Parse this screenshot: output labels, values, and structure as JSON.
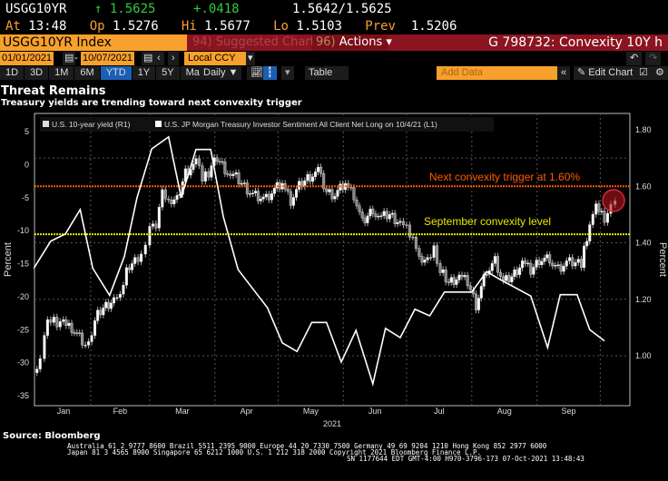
{
  "quote": {
    "ticker": "USGG10YR",
    "last": "1.5625",
    "arrow": "↑",
    "change": "+.0418",
    "bid_ask": "1.5642/1.5625",
    "at_label": "At",
    "time": "13:48",
    "op_label": "Op",
    "open": "1.5276",
    "hi_label": "Hi",
    "high": "1.5677",
    "lo_label": "Lo",
    "low": "1.5103",
    "prev_label": "Prev",
    "prev": "1.5206"
  },
  "command": {
    "security": "USGG10YR Index",
    "suggested_num": "94)",
    "suggested": "Suggested Charts",
    "actions_num": "96)",
    "actions": "Actions ▾",
    "chart_title": "G 798732: Convexity 10Y h"
  },
  "dates": {
    "start": "01/01/2021",
    "sep": "-",
    "end": "10/07/2021",
    "currency": "Local CCY"
  },
  "toolbar": {
    "periods": [
      "1D",
      "3D",
      "1M",
      "6M",
      "YTD",
      "1Y",
      "5Y",
      "Max"
    ],
    "active": "YTD",
    "frequency": "Daily ▼",
    "table": "Table",
    "add_data_placeholder": "Add Data",
    "edit_chart": "Edit Chart"
  },
  "chart_data": {
    "type": "line",
    "title": "Threat Remains",
    "subtitle": "Treasury yields are trending toward next convexity trigger",
    "legend": [
      "U.S. 10-year yield (R1)",
      "U.S. JP Morgan Treasury Investor Sentiment All Client Net Long  on 10/4/21 (L1)"
    ],
    "left_axis": {
      "label": "Percent",
      "ticks": [
        5,
        0,
        -5,
        -10,
        -15,
        -20,
        -25,
        -30,
        -35
      ],
      "range": [
        -36,
        6
      ]
    },
    "right_axis": {
      "label": "Percent",
      "ticks": [
        "1.80",
        "1.60",
        "1.40",
        "1.20",
        "1.00"
      ],
      "range": [
        0.86,
        1.86
      ]
    },
    "x_axis": {
      "months": [
        "Jan",
        "Feb",
        "Mar",
        "Apr",
        "May",
        "Jun",
        "Jul",
        "Aug",
        "Sep"
      ],
      "year": "2021",
      "unit": "day-of-year"
    },
    "annotations": [
      {
        "text": "Next convexity trigger at 1.60%",
        "value": 1.6,
        "color": "#ff5a00"
      },
      {
        "text": "September convexity level",
        "value": 1.43,
        "color": "#e8e800"
      }
    ],
    "sentiment": {
      "x": [
        4,
        12,
        19,
        26,
        32,
        40,
        47,
        53,
        60,
        68,
        74,
        81,
        88,
        94,
        101,
        115,
        122,
        129,
        136,
        143,
        150,
        157,
        165,
        171,
        178,
        185,
        192,
        199,
        207,
        212,
        219,
        226,
        240,
        248,
        254,
        262,
        268,
        275
      ],
      "y": [
        -15.7,
        -11.6,
        -10.5,
        -6.8,
        -15.7,
        -19.8,
        -13.9,
        -5.0,
        2.4,
        4.2,
        -5.0,
        2.3,
        2.3,
        -7.9,
        -15.9,
        -21.7,
        -27.0,
        -28.3,
        -23.9,
        -23.9,
        -29.9,
        -25.1,
        -33.2,
        -24.8,
        -26.2,
        -21.9,
        -22.9,
        -19.3,
        -19.3,
        -19.3,
        -16.2,
        -17.5,
        -19.9,
        -27.7,
        -19.7,
        -19.7,
        -25.0,
        -26.7
      ]
    },
    "yield": {
      "x": [
        4,
        7,
        9,
        12,
        15,
        18,
        22,
        27,
        30,
        33,
        37,
        42,
        45,
        48,
        52,
        55,
        57,
        59,
        62,
        65,
        68,
        72,
        76,
        81,
        84,
        87,
        91,
        96,
        100,
        104,
        108,
        113,
        117,
        122,
        126,
        130,
        134,
        139,
        143,
        147,
        152,
        156,
        160,
        165,
        169,
        173,
        178,
        184,
        187,
        191,
        194,
        197,
        201,
        206,
        210,
        214,
        219,
        223,
        227,
        231,
        236,
        240,
        244,
        249,
        253,
        257,
        264,
        268,
        271,
        275,
        278,
        280
      ],
      "y": [
        0.94,
        0.99,
        1.09,
        1.13,
        1.12,
        1.11,
        1.1,
        1.05,
        1.05,
        1.13,
        1.17,
        1.2,
        1.2,
        1.3,
        1.33,
        1.36,
        1.41,
        1.44,
        1.47,
        1.57,
        1.54,
        1.55,
        1.65,
        1.68,
        1.63,
        1.65,
        1.7,
        1.65,
        1.63,
        1.6,
        1.57,
        1.55,
        1.58,
        1.61,
        1.55,
        1.6,
        1.63,
        1.65,
        1.58,
        1.57,
        1.61,
        1.57,
        1.47,
        1.52,
        1.49,
        1.5,
        1.47,
        1.42,
        1.34,
        1.33,
        1.39,
        1.3,
        1.26,
        1.28,
        1.26,
        1.18,
        1.3,
        1.34,
        1.26,
        1.28,
        1.33,
        1.3,
        1.34,
        1.34,
        1.31,
        1.33,
        1.33,
        1.47,
        1.52,
        1.49,
        1.53,
        1.56
      ]
    }
  },
  "footer": {
    "source": "Source: Bloomberg",
    "line1": "Australia 61 2 9777 8600 Brazil 5511 2395 9000 Europe 44 20 7330 7500 Germany 49 69 9204 1210 Hong Kong 852 2977 6000",
    "line2": "Japan 81 3 4565 8900       Singapore 65 6212 1000       U.S. 1 212 318 2000         Copyright 2021 Bloomberg Finance L.P.",
    "line3": "SN 1177644 EDT  GMT-4:00 H970-3796-173 07-Oct-2021 13:48:43"
  }
}
